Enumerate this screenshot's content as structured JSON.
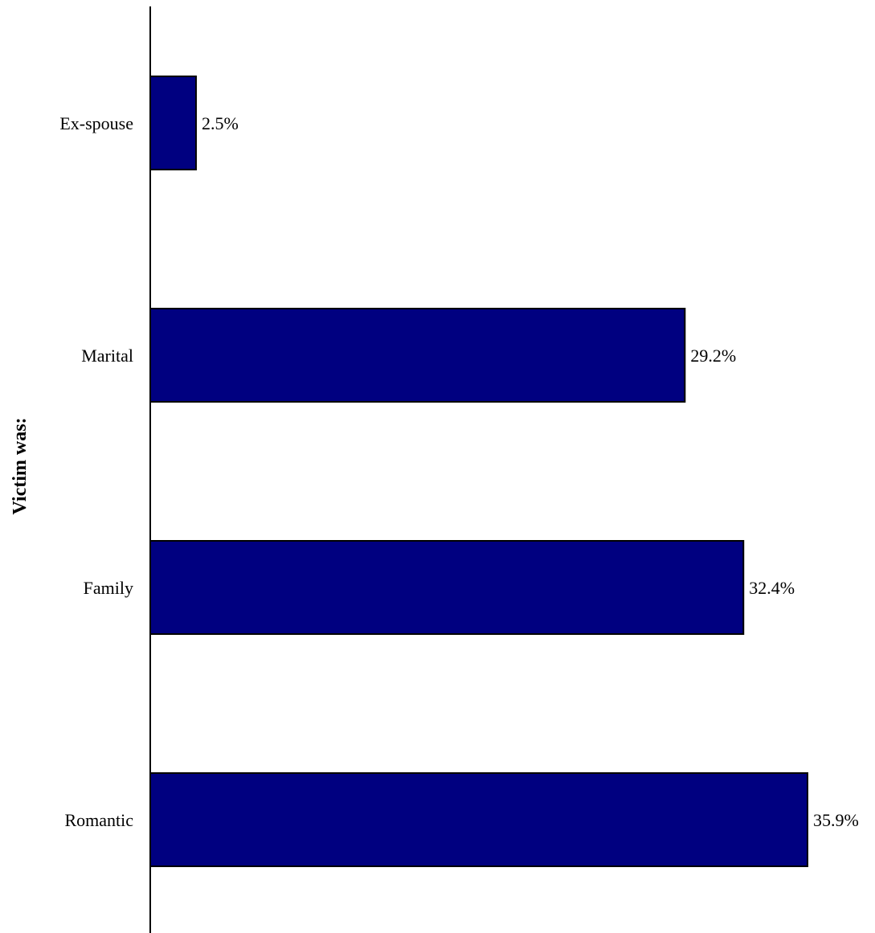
{
  "chart_data": {
    "type": "bar",
    "orientation": "horizontal",
    "ylabel": "Victim was:",
    "xlabel": "",
    "categories": [
      "Ex-spouse",
      "Marital",
      "Family",
      "Romantic"
    ],
    "values": [
      2.5,
      29.2,
      32.4,
      35.9
    ],
    "value_labels": [
      "2.5%",
      "29.2%",
      "32.4%",
      "35.9%"
    ],
    "xlim": [
      0,
      35.9
    ],
    "grid": false,
    "legend": "none",
    "bar_color": "#000080",
    "bar_edge_color": "#000000"
  }
}
